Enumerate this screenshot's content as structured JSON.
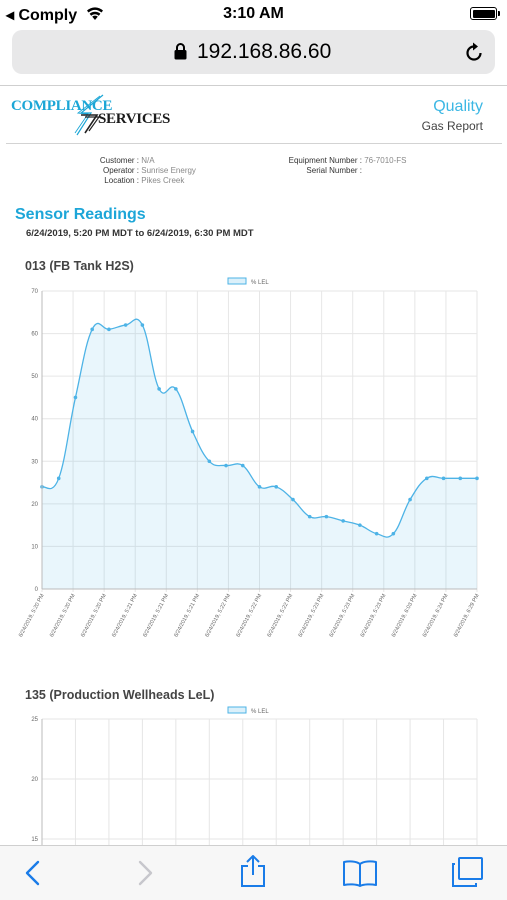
{
  "status_bar": {
    "back_app": "◂ Comply",
    "time": "3:10 AM"
  },
  "browser": {
    "url": "192.168.86.60"
  },
  "report_header": {
    "logo_text_1": "COMPLIANCE",
    "logo_text_2": "SERVICES",
    "report_type": "Quality",
    "report_name": "Gas Report"
  },
  "info": {
    "customer_label": "Customer :",
    "customer_value": "N/A",
    "operator_label": "Operator :",
    "operator_value": "Sunrise Energy",
    "location_label": "Location :",
    "location_value": "Pikes Creek",
    "equipment_label": "Equipment Number :",
    "equipment_value": "76-7010-FS",
    "serial_label": "Serial Number :",
    "serial_value": ""
  },
  "section": {
    "title": "Sensor Readings",
    "range": "6/24/2019, 5:20 PM MDT to 6/24/2019, 6:30 PM MDT"
  },
  "chart_data": [
    {
      "type": "area",
      "title": "013 (FB Tank H2S)",
      "series": [
        {
          "name": "% LEL",
          "values": [
            24,
            26,
            45,
            61,
            61,
            62,
            62,
            47,
            47,
            37,
            30,
            29,
            29,
            24,
            24,
            21,
            17,
            17,
            16,
            15,
            13,
            13,
            21,
            26,
            26,
            26,
            26
          ]
        }
      ],
      "x_ticks": [
        "6/24/2019, 5:20 PM",
        "6/24/2019, 5:20 PM",
        "6/24/2019, 5:20 PM",
        "6/24/2019, 5:21 PM",
        "6/24/2019, 5:21 PM",
        "6/24/2019, 5:21 PM",
        "6/24/2019, 5:22 PM",
        "6/24/2019, 5:22 PM",
        "6/24/2019, 5:22 PM",
        "6/24/2019, 5:23 PM",
        "6/24/2019, 5:23 PM",
        "6/24/2019, 5:23 PM",
        "6/24/2019, 6:03 PM",
        "6/24/2019, 6:24 PM",
        "6/24/2019, 6:29 PM"
      ],
      "y_ticks": [
        0,
        10,
        20,
        30,
        40,
        50,
        60,
        70
      ],
      "ylim": [
        0,
        70
      ],
      "legend": "top-center",
      "grid": true,
      "color": "#4db3e6"
    },
    {
      "type": "area",
      "title": "135 (Production Wellheads LeL)",
      "series": [
        {
          "name": "% LEL",
          "values": []
        }
      ],
      "y_ticks": [
        15,
        20,
        25
      ],
      "legend": "top-center",
      "grid": true,
      "color": "#4db3e6"
    }
  ]
}
